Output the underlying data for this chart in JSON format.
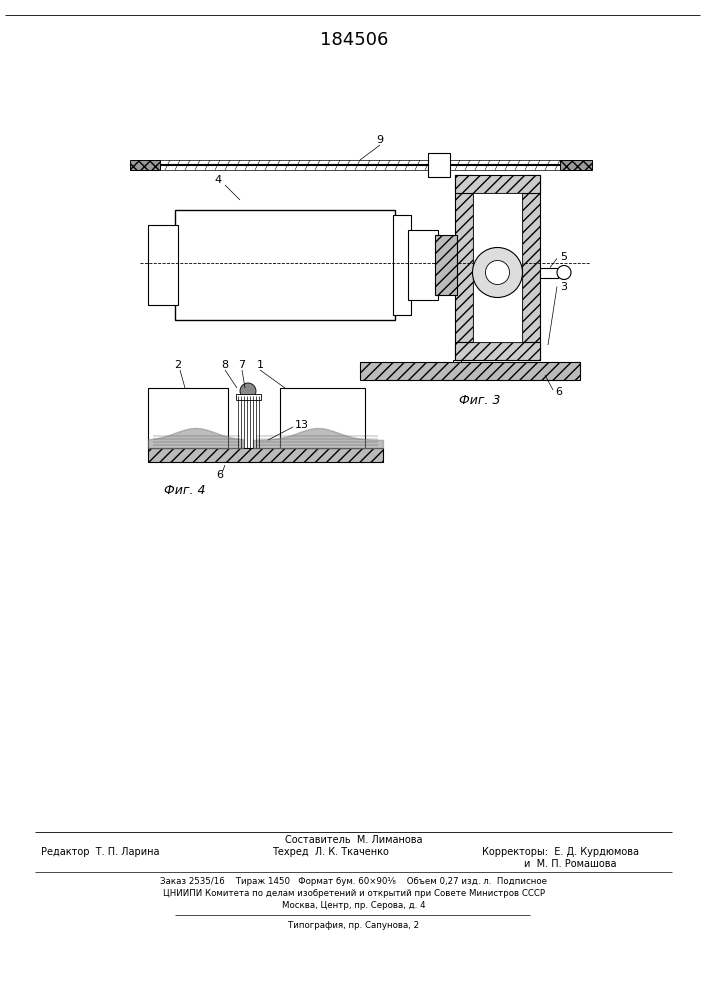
{
  "patent_number": "184506",
  "bg_color": "#ffffff",
  "footer_text_1": "Составитель  М. Лиманова",
  "footer_text_2_left": "Редактор  Т. П. Ларина",
  "footer_text_2_mid": "Техред  Л. К. Ткаченко",
  "footer_text_2_right": "Корректоры:  Е. Д. Курдюмова",
  "footer_text_2_right2": "и  М. П. Ромашова",
  "footer_text_3": "Заказ 2535/16    Тираж 1450   Формат бум. 60×90¹⁄₈    Объем 0,27 изд. л.  Подписное",
  "footer_text_4": "ЦНИИПИ Комитета по делам изобретений и открытий при Совете Министров СССР",
  "footer_text_5": "Москва, Центр, пр. Серова, д. 4",
  "footer_text_6": "Типография, пр. Сапунова, 2"
}
